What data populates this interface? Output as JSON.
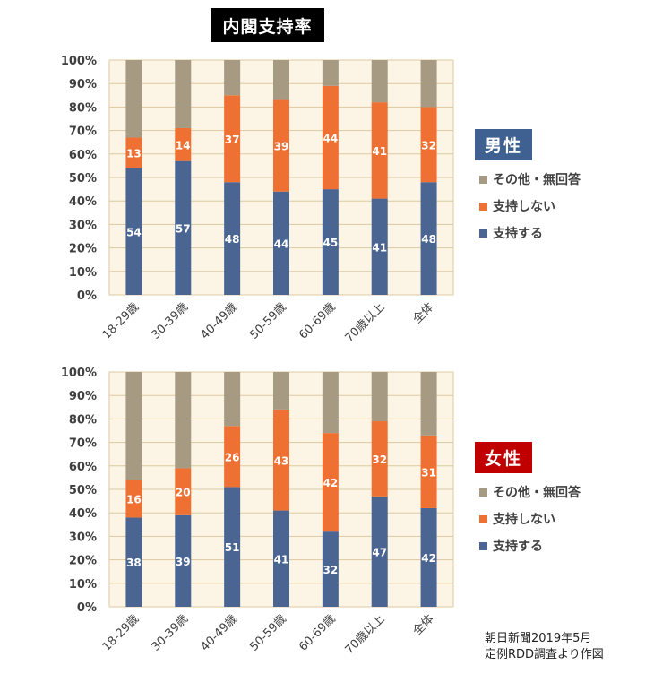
{
  "title": "内閣支持率",
  "colors": {
    "support": "#4a6592",
    "nonsupport": "#ee7133",
    "other": "#a79a82",
    "plot_bg": "#fcf5e5",
    "grid": "#dcc9a2",
    "male_box": "#3e6192",
    "female_box": "#c00000"
  },
  "legend": {
    "other": "その他・無回答",
    "nonsupport": "支持しない",
    "support": "支持する"
  },
  "source_line1": "朝日新聞2019年5月",
  "source_line2": "定例RDD調査より作図",
  "chart_data": [
    {
      "type": "bar",
      "stacked": true,
      "label": "男性",
      "categories": [
        "18-29歳",
        "30-39歳",
        "40-49歳",
        "50-59歳",
        "60-69歳",
        "70歳以上",
        "全体"
      ],
      "series": [
        {
          "name": "支持する",
          "values": [
            54,
            57,
            48,
            44,
            45,
            41,
            48
          ]
        },
        {
          "name": "支持しない",
          "values": [
            13,
            14,
            37,
            39,
            44,
            41,
            32
          ]
        },
        {
          "name": "その他・無回答",
          "values": [
            33,
            29,
            15,
            17,
            11,
            18,
            20
          ]
        }
      ],
      "ylim": [
        0,
        100
      ],
      "yticks": [
        "0%",
        "10%",
        "20%",
        "30%",
        "40%",
        "50%",
        "60%",
        "70%",
        "80%",
        "90%",
        "100%"
      ],
      "grid": true,
      "legend_position": "right"
    },
    {
      "type": "bar",
      "stacked": true,
      "label": "女性",
      "categories": [
        "18-29歳",
        "30-39歳",
        "40-49歳",
        "50-59歳",
        "60-69歳",
        "70歳以上",
        "全体"
      ],
      "series": [
        {
          "name": "支持する",
          "values": [
            38,
            39,
            51,
            41,
            32,
            47,
            42
          ]
        },
        {
          "name": "支持しない",
          "values": [
            16,
            20,
            26,
            43,
            42,
            32,
            31
          ]
        },
        {
          "name": "その他・無回答",
          "values": [
            46,
            41,
            23,
            16,
            26,
            21,
            27
          ]
        }
      ],
      "ylim": [
        0,
        100
      ],
      "yticks": [
        "0%",
        "10%",
        "20%",
        "30%",
        "40%",
        "50%",
        "60%",
        "70%",
        "80%",
        "90%",
        "100%"
      ],
      "grid": true,
      "legend_position": "right"
    }
  ]
}
